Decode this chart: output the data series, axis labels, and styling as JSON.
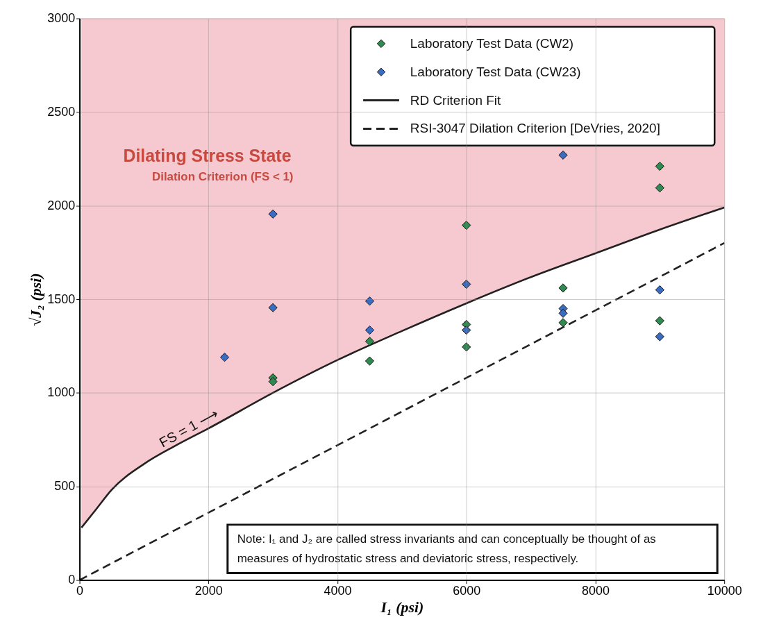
{
  "chart_data": {
    "type": "scatter",
    "xlabel": "I₁ (psi)",
    "ylabel": "√J₂ (psi)",
    "xlim": [
      0,
      10000
    ],
    "ylim": [
      0,
      3000
    ],
    "xticks": [
      0,
      2000,
      4000,
      6000,
      8000,
      10000
    ],
    "yticks": [
      0,
      500,
      1000,
      1500,
      2000,
      2500,
      3000
    ],
    "grid": true,
    "legend": "top right",
    "marker": "diamond",
    "series": [
      {
        "type": "line",
        "marker": "none",
        "name": "RD Criterion Fit",
        "color": "#222222",
        "line_style": "solid",
        "x": [
          30,
          250,
          500,
          1000,
          1500,
          2000,
          3000,
          4000,
          5000,
          6000,
          7000,
          8000,
          9000,
          10000
        ],
        "values": [
          280,
          375,
          483,
          620,
          720,
          810,
          1000,
          1175,
          1330,
          1478,
          1618,
          1745,
          1872,
          1990
        ],
        "lower": [
          280,
          375,
          483,
          620,
          720,
          810,
          1000,
          1175,
          1330,
          1478,
          1618,
          1745,
          1872,
          1990
        ],
        "upper": [
          3000,
          3000,
          3000,
          3000,
          3000,
          3000,
          3000,
          3000,
          3000,
          3000,
          3000,
          3000,
          3000,
          3000
        ]
      },
      {
        "type": "line",
        "marker": "none",
        "name": "RSI-3047 Dilation Criterion [DeVries, 2020]",
        "color": "#222222",
        "line_style": "dashed",
        "x": [
          0,
          10000
        ],
        "values": [
          0,
          1800
        ]
      },
      {
        "name": "Laboratory Test Data (CW2)",
        "color": "#2f8a4f",
        "x": [
          3000,
          3000,
          4500,
          4500,
          6000,
          6000,
          6000,
          7500,
          7500,
          9000,
          9000,
          9000
        ],
        "values": [
          1080,
          1060,
          1275,
          1170,
          1895,
          1365,
          1245,
          1560,
          1375,
          2210,
          2095,
          1385
        ]
      },
      {
        "name": "Laboratory Test Data (CW23)",
        "color": "#3a6cc0",
        "x": [
          2250,
          3000,
          3000,
          4500,
          4500,
          6000,
          6000,
          7500,
          7500,
          7500,
          9000,
          9000
        ],
        "values": [
          1190,
          1955,
          1455,
          1490,
          1335,
          1580,
          1335,
          2270,
          1450,
          1425,
          1550,
          1300
        ]
      }
    ],
    "annotations": [
      "Dilating Stress State",
      "Dilation Criterion (FS < 1)",
      "FS = 1 ⟶",
      "Note: I₁ and J₂ are called stress invariants and can conceptually be thought of as measures of hydrostatic stress and deviatoric stress, respectively."
    ]
  }
}
